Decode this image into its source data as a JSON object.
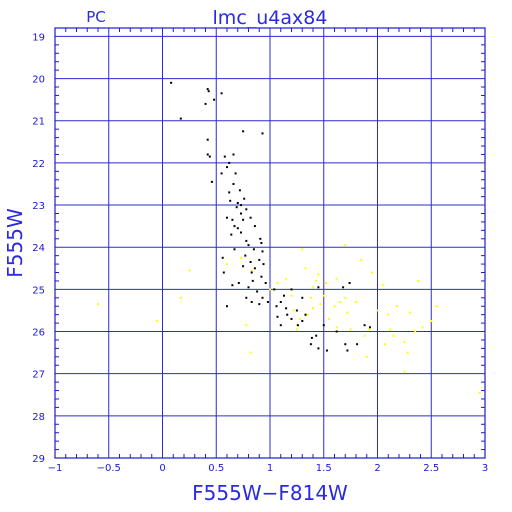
{
  "chart_data": {
    "type": "scatter",
    "title": "lmc_u4ax84",
    "subtitle": "PC",
    "xlabel": "F555W−F814W",
    "ylabel": "F555W",
    "xlim": [
      -1,
      3
    ],
    "ylim": [
      29,
      18.8
    ],
    "y_inverted": true,
    "xticks": [
      "−1",
      "−0.5",
      "0",
      "0.5",
      "1",
      "1.5",
      "2",
      "2.5",
      "3"
    ],
    "yticks": [
      "19",
      "20",
      "21",
      "22",
      "23",
      "24",
      "25",
      "26",
      "27",
      "28",
      "29"
    ],
    "grid": true,
    "colors": {
      "frame": "#1a1ad6",
      "grid": "#2b2bd0",
      "text": "#2a2ae0",
      "series_black": "#000000",
      "series_yellow": "#ffff00"
    },
    "series": [
      {
        "color": "black",
        "points": [
          [
            0.08,
            20.1
          ],
          [
            0.42,
            20.25
          ],
          [
            0.43,
            20.3
          ],
          [
            0.55,
            20.35
          ],
          [
            0.48,
            20.5
          ],
          [
            0.4,
            20.6
          ],
          [
            0.17,
            20.95
          ],
          [
            0.75,
            21.25
          ],
          [
            0.93,
            21.3
          ],
          [
            0.42,
            21.45
          ],
          [
            0.42,
            21.8
          ],
          [
            0.44,
            21.85
          ],
          [
            0.58,
            21.85
          ],
          [
            0.66,
            21.8
          ],
          [
            0.62,
            22.0
          ],
          [
            0.6,
            22.1
          ],
          [
            0.55,
            22.25
          ],
          [
            0.68,
            22.25
          ],
          [
            0.66,
            22.5
          ],
          [
            0.46,
            22.45
          ],
          [
            0.62,
            22.7
          ],
          [
            0.72,
            22.65
          ],
          [
            0.63,
            22.9
          ],
          [
            0.7,
            22.95
          ],
          [
            0.76,
            22.85
          ],
          [
            0.73,
            23.0
          ],
          [
            0.78,
            23.1
          ],
          [
            0.69,
            23.05
          ],
          [
            0.73,
            23.2
          ],
          [
            0.6,
            23.3
          ],
          [
            0.65,
            23.35
          ],
          [
            0.75,
            23.35
          ],
          [
            0.82,
            23.3
          ],
          [
            0.67,
            23.5
          ],
          [
            0.7,
            23.55
          ],
          [
            0.86,
            23.5
          ],
          [
            0.73,
            23.65
          ],
          [
            0.64,
            23.7
          ],
          [
            0.91,
            23.8
          ],
          [
            0.78,
            23.85
          ],
          [
            0.92,
            23.9
          ],
          [
            0.8,
            23.95
          ],
          [
            0.67,
            24.05
          ],
          [
            0.85,
            24.05
          ],
          [
            0.93,
            24.1
          ],
          [
            0.77,
            24.2
          ],
          [
            0.56,
            24.25
          ],
          [
            0.9,
            24.3
          ],
          [
            0.82,
            24.35
          ],
          [
            0.94,
            24.4
          ],
          [
            0.75,
            24.45
          ],
          [
            0.86,
            24.5
          ],
          [
            0.57,
            24.6
          ],
          [
            0.83,
            24.6
          ],
          [
            0.92,
            24.7
          ],
          [
            0.84,
            24.8
          ],
          [
            0.71,
            24.85
          ],
          [
            0.96,
            24.85
          ],
          [
            0.65,
            24.9
          ],
          [
            0.8,
            24.95
          ],
          [
            1.04,
            25.0
          ],
          [
            0.88,
            25.05
          ],
          [
            1.2,
            25.0
          ],
          [
            1.13,
            25.15
          ],
          [
            0.78,
            25.2
          ],
          [
            0.93,
            25.2
          ],
          [
            1.3,
            25.2
          ],
          [
            0.83,
            25.3
          ],
          [
            0.98,
            25.3
          ],
          [
            1.1,
            25.3
          ],
          [
            0.6,
            25.4
          ],
          [
            0.9,
            25.35
          ],
          [
            1.06,
            25.4
          ],
          [
            1.15,
            25.45
          ],
          [
            1.25,
            25.5
          ],
          [
            1.16,
            25.6
          ],
          [
            1.33,
            25.6
          ],
          [
            1.07,
            25.65
          ],
          [
            1.2,
            25.7
          ],
          [
            1.3,
            25.75
          ],
          [
            1.1,
            25.85
          ],
          [
            1.26,
            25.85
          ],
          [
            1.5,
            25.85
          ],
          [
            1.88,
            25.85
          ],
          [
            1.93,
            25.9
          ],
          [
            1.62,
            26.0
          ],
          [
            1.43,
            26.1
          ],
          [
            1.39,
            26.15
          ],
          [
            1.38,
            26.3
          ],
          [
            1.7,
            26.3
          ],
          [
            1.45,
            26.4
          ],
          [
            1.72,
            26.45
          ],
          [
            1.53,
            26.45
          ],
          [
            1.81,
            26.3
          ],
          [
            1.68,
            24.95
          ],
          [
            1.74,
            24.85
          ],
          [
            1.45,
            24.95
          ]
        ]
      },
      {
        "color": "yellow",
        "points": [
          [
            -0.6,
            25.35
          ],
          [
            -0.05,
            25.75
          ],
          [
            0.25,
            24.55
          ],
          [
            0.17,
            25.2
          ],
          [
            0.6,
            24.4
          ],
          [
            0.73,
            24.25
          ],
          [
            0.83,
            24.55
          ],
          [
            0.78,
            25.85
          ],
          [
            0.82,
            26.5
          ],
          [
            1.0,
            25.0
          ],
          [
            1.07,
            24.85
          ],
          [
            1.2,
            25.15
          ],
          [
            1.22,
            25.5
          ],
          [
            1.28,
            25.7
          ],
          [
            1.25,
            25.85
          ],
          [
            1.35,
            25.6
          ],
          [
            1.38,
            25.2
          ],
          [
            1.4,
            24.95
          ],
          [
            1.43,
            24.8
          ],
          [
            1.4,
            25.45
          ],
          [
            1.47,
            25.35
          ],
          [
            1.5,
            25.15
          ],
          [
            1.55,
            25.7
          ],
          [
            1.6,
            25.4
          ],
          [
            1.62,
            24.75
          ],
          [
            1.65,
            25.3
          ],
          [
            1.7,
            25.2
          ],
          [
            1.72,
            25.55
          ],
          [
            1.75,
            25.95
          ],
          [
            1.8,
            25.3
          ],
          [
            1.85,
            24.3
          ],
          [
            1.88,
            26.1
          ],
          [
            1.92,
            25.95
          ],
          [
            2.0,
            25.5
          ],
          [
            2.05,
            24.9
          ],
          [
            2.07,
            26.3
          ],
          [
            2.12,
            25.95
          ],
          [
            2.18,
            25.4
          ],
          [
            2.25,
            26.25
          ],
          [
            2.28,
            26.5
          ],
          [
            2.35,
            26.0
          ],
          [
            2.38,
            24.8
          ],
          [
            2.42,
            25.9
          ],
          [
            2.5,
            25.75
          ],
          [
            2.55,
            25.4
          ],
          [
            2.25,
            26.95
          ],
          [
            1.33,
            24.5
          ],
          [
            1.52,
            24.85
          ],
          [
            1.3,
            24.05
          ],
          [
            1.7,
            23.95
          ],
          [
            1.95,
            24.6
          ],
          [
            2.1,
            25.6
          ],
          [
            2.95,
            27.45
          ],
          [
            1.15,
            24.75
          ],
          [
            1.9,
            26.6
          ],
          [
            1.25,
            25.95
          ],
          [
            2.3,
            25.55
          ],
          [
            1.45,
            24.65
          ],
          [
            1.62,
            25.9
          ],
          [
            2.15,
            26.1
          ]
        ]
      }
    ]
  }
}
